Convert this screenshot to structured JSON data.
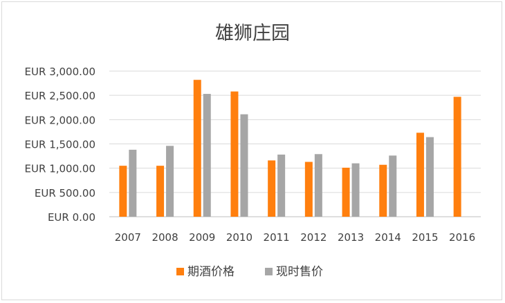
{
  "chart_data": {
    "type": "bar",
    "title": "雄狮庄园",
    "xlabel": "",
    "ylabel": "",
    "categories": [
      "2007",
      "2008",
      "2009",
      "2010",
      "2011",
      "2012",
      "2013",
      "2014",
      "2015",
      "2016"
    ],
    "series": [
      {
        "name": "期酒价格",
        "color": "#ff7f0e",
        "values": [
          1050,
          1050,
          2820,
          2580,
          1160,
          1130,
          1010,
          1070,
          1730,
          2470
        ]
      },
      {
        "name": "现时售价",
        "color": "#a6a6a6",
        "values": [
          1380,
          1460,
          2530,
          2110,
          1280,
          1290,
          1100,
          1260,
          1640,
          null
        ]
      }
    ],
    "ylim": [
      0,
      3000
    ],
    "yticks": [
      0,
      500,
      1000,
      1500,
      2000,
      2500,
      3000
    ],
    "ytick_labels": [
      "EUR 0.00",
      "EUR 500.00",
      "EUR 1,000.00",
      "EUR 1,500.00",
      "EUR 2,000.00",
      "EUR 2,500.00",
      "EUR 3,000.00"
    ],
    "grid": true,
    "legend_position": "bottom"
  }
}
